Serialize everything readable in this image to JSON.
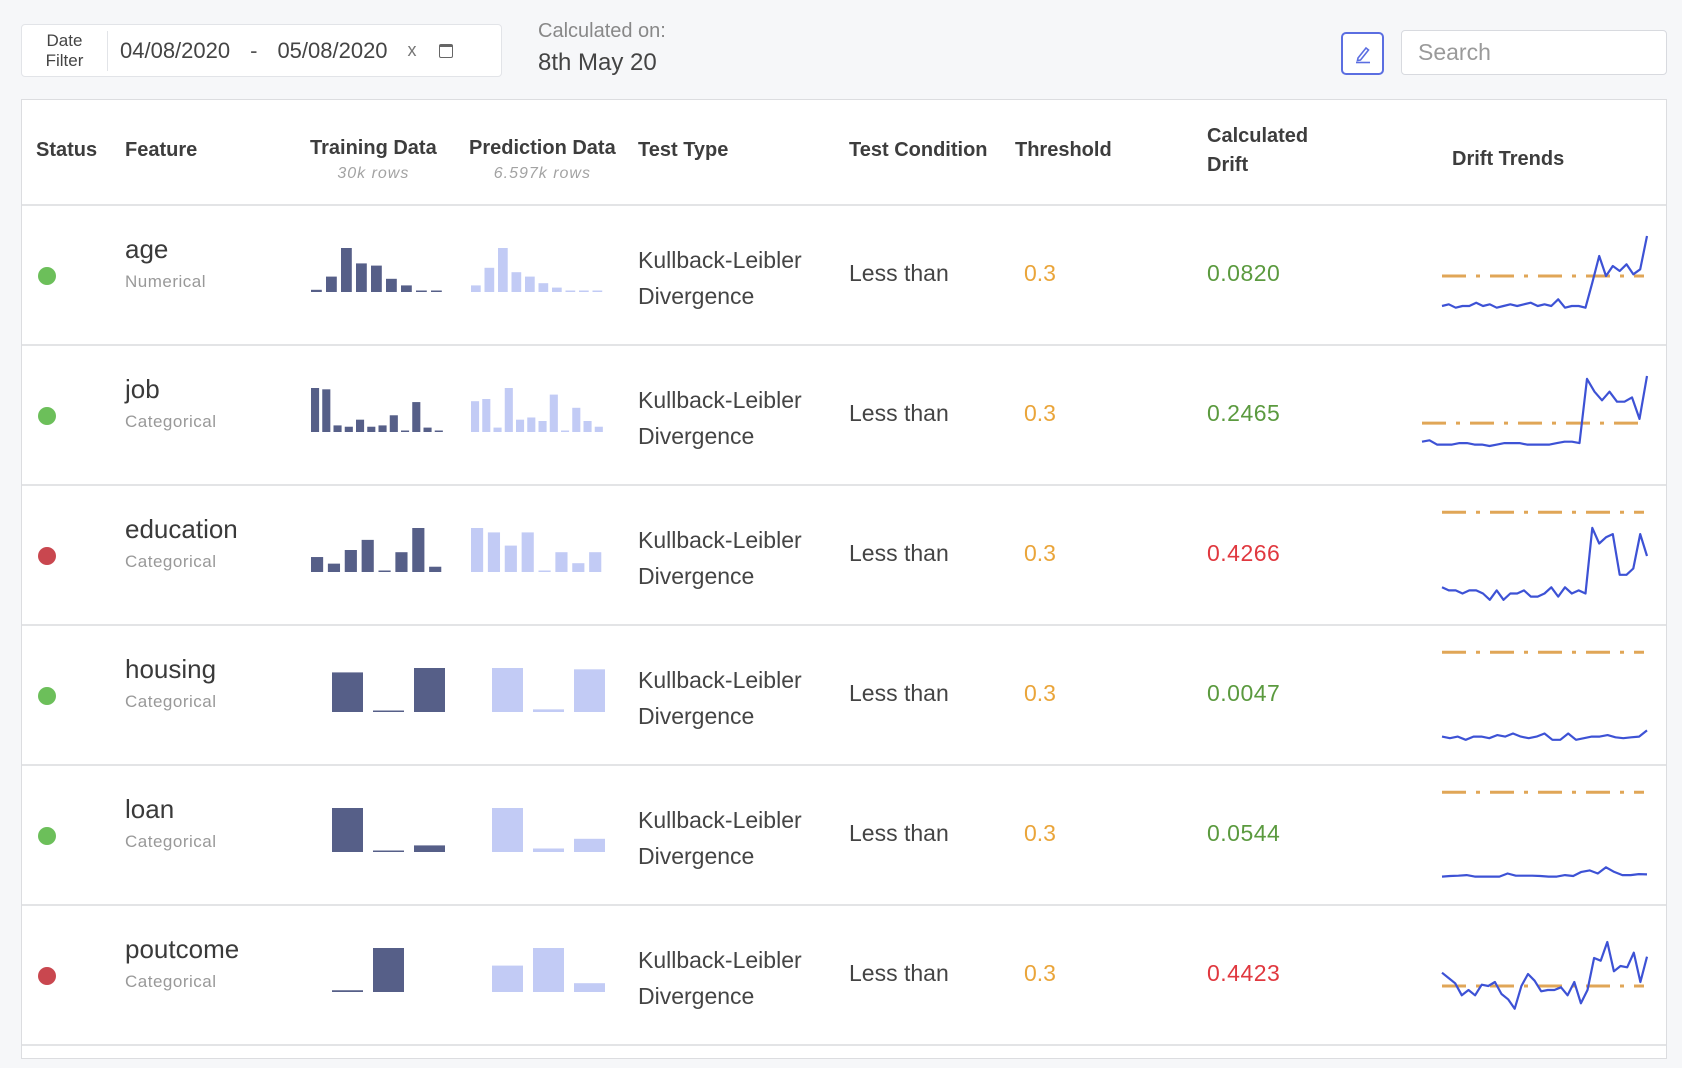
{
  "colors": {
    "ok": "#6cbf5a",
    "fail": "#c9474f",
    "drift_ok": "#5b9a3f",
    "drift_fail": "#e0383f",
    "threshold": "#eaa53a",
    "training_bar": "#565f88",
    "prediction_bar": "#c2cbf5",
    "trend_line": "#3d52d5",
    "threshold_line": "#e0a657",
    "accent": "#5b6ee1"
  },
  "date_filter": {
    "label_line1": "Date",
    "label_line2": "Filter",
    "start": "04/08/2020",
    "separator": "-",
    "end": "05/08/2020",
    "clear": "x",
    "calendar_icon": "calendar-icon"
  },
  "calculated_on": {
    "label": "Calculated on:",
    "value": "8th May 20"
  },
  "edit_button": {
    "icon": "pencil-icon"
  },
  "search": {
    "placeholder": "Search",
    "value": ""
  },
  "table": {
    "headers": {
      "status": "Status",
      "feature": "Feature",
      "training": "Training Data",
      "training_sub": "30k rows",
      "prediction": "Prediction Data",
      "prediction_sub": "6.597k rows",
      "test_type": "Test Type",
      "test_condition": "Test Condition",
      "threshold": "Threshold",
      "drift_line1": "Calculated",
      "drift_line2": "Drift",
      "trends": "Drift Trends"
    },
    "rows": [
      {
        "status": "ok",
        "feature": "age",
        "type": "Numerical",
        "test_line1": "Kullback-Leibler",
        "test_line2": "Divergence",
        "condition": "Less than",
        "threshold": "0.3",
        "drift": "0.0820",
        "training_hist": [
          0.05,
          0.35,
          1,
          0.65,
          0.6,
          0.3,
          0.15,
          0.02,
          0.01
        ],
        "prediction_hist": [
          0.15,
          0.55,
          1,
          0.45,
          0.35,
          0.2,
          0.1,
          0.03,
          0.03,
          0.03
        ],
        "trend": {
          "ylim": [
            0,
            0.6
          ],
          "values": [
            0.12,
            0.13,
            0.11,
            0.12,
            0.12,
            0.14,
            0.12,
            0.13,
            0.11,
            0.12,
            0.13,
            0.12,
            0.13,
            0.14,
            0.12,
            0.13,
            0.12,
            0.16,
            0.11,
            0.12,
            0.12,
            0.11,
            0.26,
            0.42,
            0.3,
            0.36,
            0.33,
            0.37,
            0.31,
            0.34,
            0.54
          ]
        }
      },
      {
        "status": "ok",
        "feature": "job",
        "type": "Categorical",
        "test_line1": "Kullback-Leibler",
        "test_line2": "Divergence",
        "condition": "Less than",
        "threshold": "0.3",
        "drift": "0.2465",
        "training_hist": [
          1,
          0.97,
          0.15,
          0.12,
          0.28,
          0.12,
          0.15,
          0.38,
          0.02,
          0.68,
          0.1,
          0.02
        ],
        "prediction_hist": [
          0.7,
          0.75,
          0.1,
          1,
          0.28,
          0.33,
          0.25,
          0.85,
          0.02,
          0.55,
          0.25,
          0.12
        ],
        "trend": {
          "ylim": [
            0,
            0.7
          ],
          "values": [
            0.17,
            0.18,
            0.15,
            0.15,
            0.15,
            0.16,
            0.16,
            0.15,
            0.15,
            0.14,
            0.15,
            0.16,
            0.16,
            0.16,
            0.15,
            0.15,
            0.15,
            0.15,
            0.16,
            0.17,
            0.17,
            0.16,
            0.61,
            0.52,
            0.46,
            0.52,
            0.45,
            0.45,
            0.48,
            0.33,
            0.63
          ]
        }
      },
      {
        "status": "fail",
        "feature": "education",
        "type": "Categorical",
        "test_line1": "Kullback-Leibler",
        "test_line2": "Divergence",
        "condition": "Less than",
        "threshold": "0.3",
        "drift": "0.4266",
        "training_hist": [
          0.34,
          0.19,
          0.5,
          0.73,
          0,
          0.45,
          1,
          0.12
        ],
        "prediction_hist": [
          1,
          0.9,
          0.6,
          0.9,
          0,
          0.45,
          0.2,
          0.45
        ],
        "trend": {
          "ylim": [
            0,
            0.32
          ],
          "values": [
            0.06,
            0.05,
            0.05,
            0.04,
            0.05,
            0.05,
            0.04,
            0.02,
            0.05,
            0.02,
            0.04,
            0.04,
            0.05,
            0.03,
            0.03,
            0.04,
            0.06,
            0.03,
            0.06,
            0.04,
            0.05,
            0.04,
            0.25,
            0.2,
            0.22,
            0.23,
            0.1,
            0.1,
            0.12,
            0.23,
            0.16
          ]
        }
      },
      {
        "status": "ok",
        "feature": "housing",
        "type": "Categorical",
        "test_line1": "Kullback-Leibler",
        "test_line2": "Divergence",
        "condition": "Less than",
        "threshold": "0.3",
        "drift": "0.0047",
        "training_hist": [
          0.9,
          0.03,
          1
        ],
        "prediction_hist": [
          1,
          0.06,
          0.97
        ],
        "trend": {
          "ylim": [
            0,
            0.32
          ],
          "values": [
            0.03,
            0.025,
            0.03,
            0.02,
            0.03,
            0.03,
            0.025,
            0.035,
            0.03,
            0.04,
            0.03,
            0.025,
            0.03,
            0.04,
            0.02,
            0.02,
            0.04,
            0.02,
            0.025,
            0.03,
            0.03,
            0.035,
            0.028,
            0.025,
            0.028,
            0.03,
            0.05
          ]
        }
      },
      {
        "status": "ok",
        "feature": "loan",
        "type": "Categorical",
        "test_line1": "Kullback-Leibler",
        "test_line2": "Divergence",
        "condition": "Less than",
        "threshold": "0.3",
        "drift": "0.0544",
        "training_hist": [
          1,
          0.03,
          0.15
        ],
        "prediction_hist": [
          1,
          0.08,
          0.3
        ],
        "trend": {
          "ylim": [
            0,
            0.32
          ],
          "values": [
            0.03,
            0.032,
            0.033,
            0.035,
            0.03,
            0.03,
            0.03,
            0.03,
            0.04,
            0.033,
            0.033,
            0.033,
            0.032,
            0.03,
            0.03,
            0.035,
            0.032,
            0.045,
            0.05,
            0.04,
            0.06,
            0.045,
            0.035,
            0.035,
            0.038,
            0.037
          ]
        }
      },
      {
        "status": "fail",
        "feature": "poutcome",
        "type": "Categorical",
        "test_line1": "Kullback-Leibler",
        "test_line2": "Divergence",
        "condition": "Less than",
        "threshold": "0.3",
        "drift": "0.4423",
        "training_hist": [
          0.04,
          1
        ],
        "prediction_hist": [
          0.6,
          1,
          0.2
        ],
        "trend": {
          "ylim": [
            0,
            0.75
          ],
          "values": [
            0.4,
            0.36,
            0.32,
            0.23,
            0.27,
            0.23,
            0.31,
            0.3,
            0.33,
            0.24,
            0.2,
            0.13,
            0.3,
            0.39,
            0.34,
            0.26,
            0.27,
            0.27,
            0.29,
            0.23,
            0.33,
            0.17,
            0.27,
            0.51,
            0.49,
            0.63,
            0.41,
            0.45,
            0.44,
            0.55,
            0.33,
            0.52
          ]
        }
      }
    ]
  }
}
